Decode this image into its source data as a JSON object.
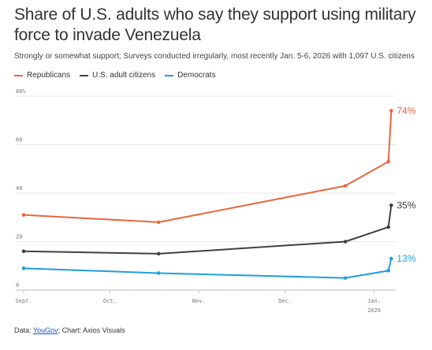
{
  "header": {
    "title": "Share of U.S. adults who say they support using military force to invade Venezuela",
    "subtitle": "Strongly or somewhat support; Surveys conducted irregularly, most recently Jan. 5-6, 2026 with 1,097 U.S. citizens"
  },
  "footer": {
    "data_prefix": "Data: ",
    "source_link": "YouGov",
    "separator": "; ",
    "credit": "Chart: Axios Visuals"
  },
  "chart_data": {
    "type": "line",
    "x_axis": {
      "type": "date",
      "range": [
        "2025-09-01",
        "2026-01-08"
      ],
      "ticks": [
        {
          "date": "2025-09-01",
          "label": "Sept."
        },
        {
          "date": "2025-10-01",
          "label": "Oct."
        },
        {
          "date": "2025-11-01",
          "label": "Nov."
        },
        {
          "date": "2025-12-01",
          "label": "Dec."
        },
        {
          "date": "2026-01-01",
          "label": "Jan.",
          "sublabel": "2026"
        }
      ]
    },
    "y_axis": {
      "range": [
        0,
        80
      ],
      "ticks": [
        {
          "value": 0,
          "label": "0"
        },
        {
          "value": 20,
          "label": "20"
        },
        {
          "value": 40,
          "label": "40"
        },
        {
          "value": 60,
          "label": "60"
        },
        {
          "value": 80,
          "label": "80%"
        }
      ]
    },
    "grid": {
      "horizontal": true,
      "vertical": false
    },
    "legend_position": "top-left",
    "series": [
      {
        "name": "Republicans",
        "color": "#e8663d",
        "end_label": "74%",
        "points": [
          {
            "date": "2025-09-01",
            "value": 31
          },
          {
            "date": "2025-10-18",
            "value": 28
          },
          {
            "date": "2025-12-22",
            "value": 43
          },
          {
            "date": "2026-01-06",
            "value": 53
          },
          {
            "date": "2026-01-07",
            "value": 74
          }
        ]
      },
      {
        "name": "U.S. adult citizens",
        "color": "#404040",
        "end_label": "35%",
        "points": [
          {
            "date": "2025-09-01",
            "value": 16
          },
          {
            "date": "2025-10-18",
            "value": 15
          },
          {
            "date": "2025-12-22",
            "value": 20
          },
          {
            "date": "2026-01-06",
            "value": 26
          },
          {
            "date": "2026-01-07",
            "value": 35
          }
        ]
      },
      {
        "name": "Democrats",
        "color": "#1f9ee0",
        "end_label": "13%",
        "points": [
          {
            "date": "2025-09-01",
            "value": 9
          },
          {
            "date": "2025-10-18",
            "value": 7
          },
          {
            "date": "2025-12-22",
            "value": 5
          },
          {
            "date": "2026-01-06",
            "value": 8
          },
          {
            "date": "2026-01-07",
            "value": 13
          }
        ]
      }
    ]
  }
}
